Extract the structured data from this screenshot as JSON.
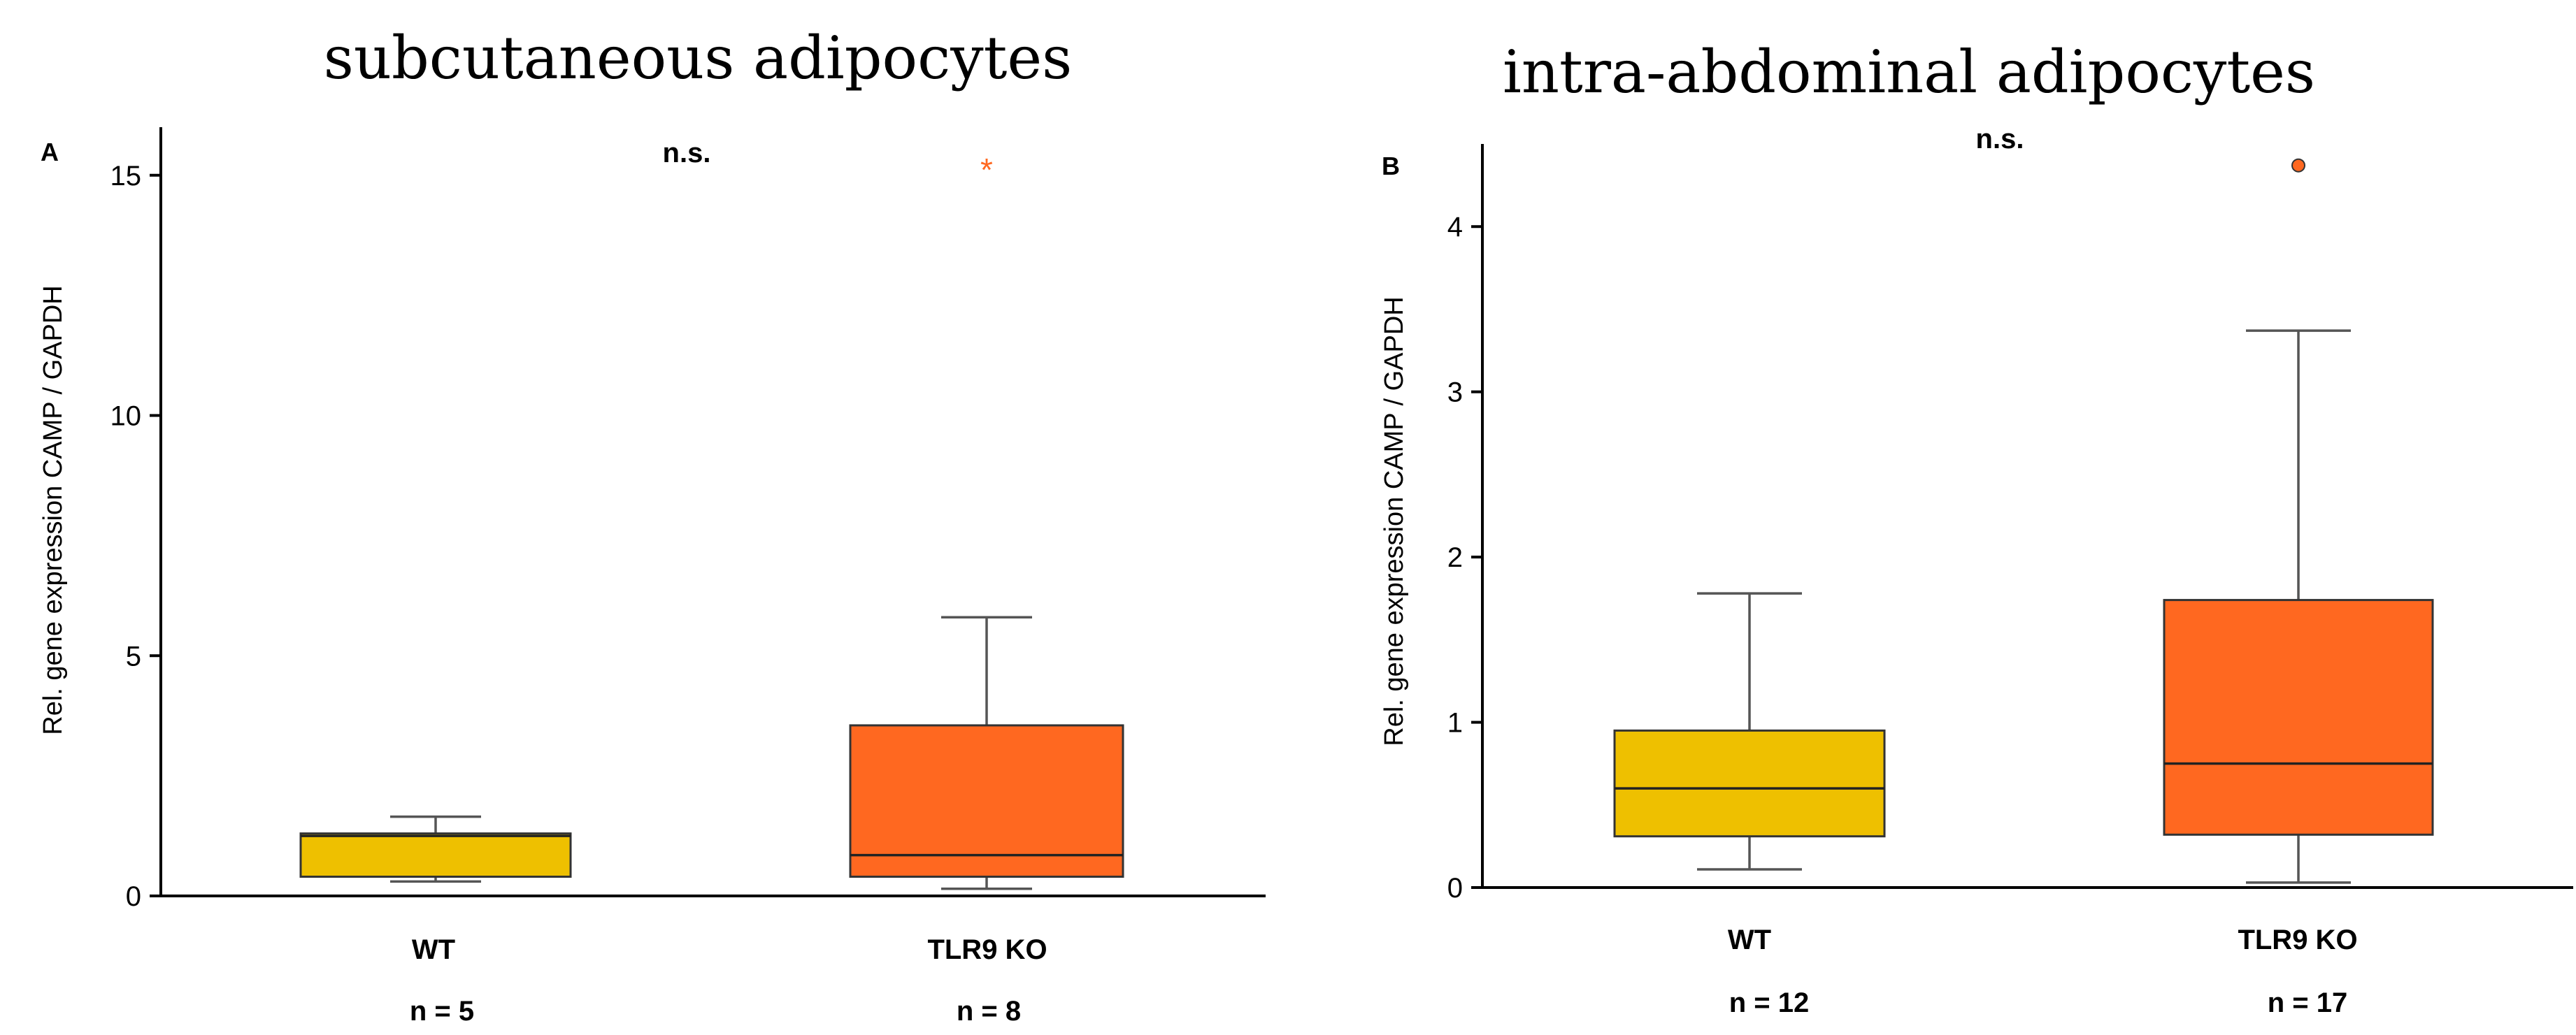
{
  "chart_data": [
    {
      "type": "box",
      "panel_label": "A",
      "title": "subcutaneous adipocytes",
      "ylabel": "Rel. gene expression CAMP / GAPDH",
      "ylim": [
        0,
        16
      ],
      "yticks": [
        0,
        5,
        10,
        15
      ],
      "annotation": "n.s.",
      "categories": [
        "WT",
        "TLR9 KO"
      ],
      "n_labels": [
        "n = 5",
        "n = 8"
      ],
      "boxes": [
        {
          "name": "WT",
          "whisker_low": 0.3,
          "q1": 0.4,
          "median": 1.25,
          "q3": 1.3,
          "whisker_high": 1.65,
          "outliers": [],
          "outlier_marker": "",
          "color": "#EEC000"
        },
        {
          "name": "TLR9 KO",
          "whisker_low": 0.15,
          "q1": 0.4,
          "median": 0.85,
          "q3": 3.55,
          "whisker_high": 5.8,
          "outliers": [
            15.2
          ],
          "outlier_marker": "*",
          "color": "#FF6820"
        }
      ]
    },
    {
      "type": "box",
      "panel_label": "B",
      "title": "intra-abdominal adipocytes",
      "ylabel": "Rel. gene expression CAMP / GAPDH",
      "ylim": [
        0,
        4.5
      ],
      "yticks": [
        0,
        1,
        2,
        3,
        4
      ],
      "annotation": "n.s.",
      "categories": [
        "WT",
        "TLR9 KO"
      ],
      "n_labels": [
        "n = 12",
        "n = 17"
      ],
      "boxes": [
        {
          "name": "WT",
          "whisker_low": 0.11,
          "q1": 0.31,
          "median": 0.6,
          "q3": 0.95,
          "whisker_high": 1.78,
          "outliers": [],
          "outlier_marker": "",
          "color": "#EEC000"
        },
        {
          "name": "TLR9 KO",
          "whisker_low": 0.03,
          "q1": 0.32,
          "median": 0.75,
          "q3": 1.74,
          "whisker_high": 3.37,
          "outliers": [
            4.37
          ],
          "outlier_marker": "o",
          "color": "#FF6820"
        }
      ]
    }
  ]
}
